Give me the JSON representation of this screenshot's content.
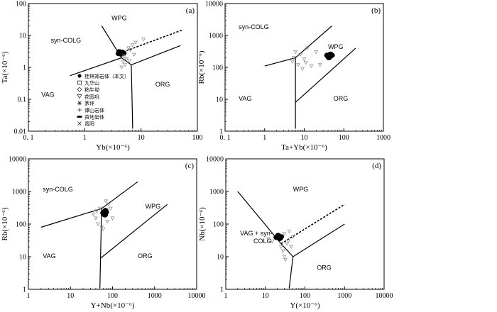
{
  "chart_data": [
    {
      "id": "a",
      "type": "scatter",
      "panel_label": "(a)",
      "xlabel": "Yb(×10⁻⁶)",
      "ylabel": "Ta(×10⁻⁶)",
      "xlim": [
        0.1,
        100
      ],
      "ylim": [
        0.01,
        100
      ],
      "xticks": [
        {
          "v": 0.1,
          "label": "0. 1"
        },
        {
          "v": 1,
          "label": "1"
        },
        {
          "v": 10,
          "label": "10"
        },
        {
          "v": 100,
          "label": "100"
        }
      ],
      "yticks": [
        {
          "v": 0.01,
          "label": "0.01"
        },
        {
          "v": 0.1,
          "label": "0.1"
        },
        {
          "v": 1,
          "label": "1"
        },
        {
          "v": 10,
          "label": "10"
        },
        {
          "v": 100,
          "label": "100"
        }
      ],
      "fields": [
        {
          "label": "WPG",
          "x": 3,
          "y": 30
        },
        {
          "label": "syn-COLG",
          "x": 0.25,
          "y": 6
        },
        {
          "label": "VAG",
          "x": 0.17,
          "y": 0.12
        },
        {
          "label": "ORG",
          "x": 18,
          "y": 0.25
        }
      ],
      "boundaries": [
        {
          "points": [
            [
              2,
              20
            ],
            [
              4.5,
              2
            ],
            [
              6.7,
              1.2
            ]
          ]
        },
        {
          "points": [
            [
              0.55,
              0.55
            ],
            [
              4.5,
              2
            ]
          ]
        },
        {
          "points": [
            [
              6.7,
              1.2
            ],
            [
              50,
              4.8
            ]
          ]
        },
        {
          "points": [
            [
              6.7,
              1.2
            ],
            [
              7.1,
              0.012
            ]
          ]
        },
        {
          "points": [
            [
              4.2,
              2.8
            ],
            [
              55,
              15
            ]
          ],
          "dashed": true
        }
      ],
      "clusters": [
        {
          "marker": "filled",
          "points": [
            [
              4.0,
              2.7
            ],
            [
              4.3,
              2.9
            ],
            [
              4.6,
              3.0
            ],
            [
              4.4,
              2.6
            ],
            [
              4.9,
              2.8
            ],
            [
              4.1,
              3.1
            ],
            [
              4.7,
              2.7
            ]
          ]
        },
        {
          "marker": "open",
          "points": [
            [
              5.0,
              2.2
            ],
            [
              6.0,
              4.0
            ],
            [
              7.0,
              5.0
            ],
            [
              8.0,
              6.0
            ],
            [
              11,
              7.5
            ],
            [
              6.5,
              3.5
            ],
            [
              5.5,
              1.8
            ],
            [
              4.8,
              1.5
            ],
            [
              7.5,
              2.5
            ],
            [
              6.2,
              1.6
            ],
            [
              5.2,
              1.2
            ],
            [
              4.5,
              1.0
            ]
          ]
        }
      ],
      "legend": {
        "position": "left-middle",
        "entries": [
          {
            "label": "桂林郑岩体（本文）",
            "marker": "filled"
          },
          {
            "label": "九华山",
            "marker": "square"
          },
          {
            "label": "粘牛坳",
            "marker": "diamond"
          },
          {
            "label": "花园巩",
            "marker": "triangle"
          },
          {
            "label": "茅坪",
            "marker": "star"
          },
          {
            "label": "谭山岩体",
            "marker": "plus"
          },
          {
            "label": "资地岩体",
            "marker": "bar"
          },
          {
            "label": "青阳",
            "marker": "cross"
          }
        ]
      }
    },
    {
      "id": "b",
      "type": "scatter",
      "panel_label": "(b)",
      "xlabel": "Ta+Yb(×10⁻⁶)",
      "ylabel": "Rb(×10⁻⁶)",
      "xlim": [
        0.1,
        1000
      ],
      "ylim": [
        1,
        10000
      ],
      "xticks": [
        {
          "v": 0.1,
          "label": "0. 1"
        },
        {
          "v": 1,
          "label": "1"
        },
        {
          "v": 10,
          "label": "10"
        },
        {
          "v": 100,
          "label": "100"
        },
        {
          "v": 1000,
          "label": "1000"
        }
      ],
      "yticks": [
        {
          "v": 1,
          "label": "1"
        },
        {
          "v": 10,
          "label": "10"
        },
        {
          "v": 100,
          "label": "100"
        },
        {
          "v": 1000,
          "label": "1000"
        },
        {
          "v": 10000,
          "label": "10000"
        }
      ],
      "fields": [
        {
          "label": "syn-COLG",
          "x": 0.22,
          "y": 1600
        },
        {
          "label": "WPG",
          "x": 40,
          "y": 380
        },
        {
          "label": "VAG",
          "x": 0.22,
          "y": 9
        },
        {
          "label": "ORG",
          "x": 55,
          "y": 9
        }
      ],
      "boundaries": [
        {
          "points": [
            [
              1,
              110
            ],
            [
              6,
              200
            ],
            [
              50,
              2000
            ]
          ]
        },
        {
          "points": [
            [
              6,
              200
            ],
            [
              6,
              1.2
            ]
          ]
        },
        {
          "points": [
            [
              6,
              8
            ],
            [
              200,
              400
            ]
          ]
        }
      ],
      "clusters": [
        {
          "marker": "filled",
          "points": [
            [
              40,
              220
            ],
            [
              44,
              250
            ],
            [
              48,
              230
            ],
            [
              42,
              200
            ],
            [
              46,
              260
            ],
            [
              50,
              240
            ],
            [
              38,
              240
            ]
          ]
        },
        {
          "marker": "open",
          "points": [
            [
              5,
              150
            ],
            [
              6,
              300
            ],
            [
              8,
              250
            ],
            [
              10,
              180
            ],
            [
              12,
              400
            ],
            [
              7,
              120
            ],
            [
              9,
              90
            ],
            [
              15,
              110
            ],
            [
              20,
              300
            ],
            [
              5.5,
              200
            ],
            [
              11,
              140
            ],
            [
              25,
              120
            ]
          ]
        }
      ]
    },
    {
      "id": "c",
      "type": "scatter",
      "panel_label": "(c)",
      "xlabel": "Y+Nb(×10⁻⁶)",
      "ylabel": "Rb(×10⁻⁶)",
      "xlim": [
        1,
        10000
      ],
      "ylim": [
        1,
        10000
      ],
      "xticks": [
        {
          "v": 1,
          "label": "1"
        },
        {
          "v": 10,
          "label": "10"
        },
        {
          "v": 100,
          "label": "100"
        },
        {
          "v": 1000,
          "label": "1000"
        },
        {
          "v": 10000,
          "label": "10000"
        }
      ],
      "yticks": [
        {
          "v": 1,
          "label": "1"
        },
        {
          "v": 10,
          "label": "10"
        },
        {
          "v": 100,
          "label": "100"
        },
        {
          "v": 1000,
          "label": "1000"
        },
        {
          "v": 10000,
          "label": "10000"
        }
      ],
      "fields": [
        {
          "label": "syn-COLG",
          "x": 2.2,
          "y": 1000
        },
        {
          "label": "WPG",
          "x": 600,
          "y": 300
        },
        {
          "label": "VAG",
          "x": 2.2,
          "y": 9
        },
        {
          "label": "ORG",
          "x": 400,
          "y": 9
        }
      ],
      "boundaries": [
        {
          "points": [
            [
              2,
              80
            ],
            [
              55,
              300
            ],
            [
              400,
              2000
            ]
          ]
        },
        {
          "points": [
            [
              55,
              300
            ],
            [
              50,
              1.1
            ]
          ]
        },
        {
          "points": [
            [
              52,
              9
            ],
            [
              2000,
              400
            ]
          ]
        }
      ],
      "clusters": [
        {
          "marker": "filled",
          "points": [
            [
              60,
              220
            ],
            [
              65,
              240
            ],
            [
              70,
              230
            ],
            [
              62,
              200
            ],
            [
              68,
              260
            ],
            [
              66,
              190
            ]
          ]
        },
        {
          "marker": "open",
          "points": [
            [
              40,
              150
            ],
            [
              50,
              300
            ],
            [
              70,
              500
            ],
            [
              80,
              400
            ],
            [
              45,
              100
            ],
            [
              55,
              80
            ],
            [
              60,
              70
            ],
            [
              35,
              200
            ],
            [
              90,
              300
            ],
            [
              100,
              150
            ],
            [
              75,
              120
            ],
            [
              42,
              250
            ]
          ]
        }
      ]
    },
    {
      "id": "d",
      "type": "scatter",
      "panel_label": "(d)",
      "xlabel": "Y(×10⁻⁶)",
      "ylabel": "Nb(×10⁻⁶)",
      "xlim": [
        1,
        10000
      ],
      "ylim": [
        1,
        10000
      ],
      "xticks": [
        {
          "v": 1,
          "label": "1"
        },
        {
          "v": 10,
          "label": "10"
        },
        {
          "v": 100,
          "label": "100"
        },
        {
          "v": 1000,
          "label": "1000"
        },
        {
          "v": 10000,
          "label": "10000"
        }
      ],
      "yticks": [
        {
          "v": 1,
          "label": "1"
        },
        {
          "v": 10,
          "label": "10"
        },
        {
          "v": 100,
          "label": "100"
        },
        {
          "v": 1000,
          "label": "1000"
        },
        {
          "v": 10000,
          "label": "10000"
        }
      ],
      "fields": [
        {
          "label": "WPG",
          "x": 50,
          "y": 1000
        },
        {
          "label": "VAG + syn-",
          "x": 2.3,
          "y": 45
        },
        {
          "label": "COLG",
          "x": 5,
          "y": 26
        },
        {
          "label": "ORG",
          "x": 200,
          "y": 4
        }
      ],
      "boundaries": [
        {
          "points": [
            [
              2,
              1000
            ],
            [
              25,
              25
            ],
            [
              50,
              10
            ]
          ]
        },
        {
          "points": [
            [
              50,
              10
            ],
            [
              1000,
              100
            ]
          ]
        },
        {
          "points": [
            [
              50,
              10
            ],
            [
              40,
              1.1
            ]
          ]
        },
        {
          "points": [
            [
              25,
              25
            ],
            [
              1000,
              400
            ]
          ],
          "dashed": true
        }
      ],
      "clusters": [
        {
          "marker": "filled",
          "points": [
            [
              20,
              40
            ],
            [
              22,
              42
            ],
            [
              24,
              38
            ],
            [
              21,
              45
            ],
            [
              23,
              36
            ],
            [
              25,
              41
            ],
            [
              19,
              39
            ]
          ]
        },
        {
          "marker": "open",
          "points": [
            [
              15,
              30
            ],
            [
              30,
              50
            ],
            [
              40,
              60
            ],
            [
              35,
              25
            ],
            [
              45,
              20
            ],
            [
              28,
              15
            ],
            [
              30,
              10
            ],
            [
              12,
              35
            ],
            [
              50,
              40
            ],
            [
              32,
              8
            ],
            [
              38,
              30
            ],
            [
              25,
              20
            ]
          ]
        }
      ]
    }
  ]
}
